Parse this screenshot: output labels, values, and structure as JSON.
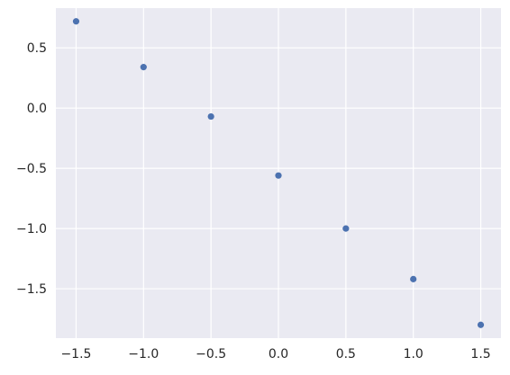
{
  "chart_data": {
    "type": "scatter",
    "title": "",
    "xlabel": "",
    "ylabel": "",
    "grid": true,
    "colors": {
      "background": "#eaeaf2",
      "grid": "#ffffff",
      "point": "#4c72b0",
      "tick_text": "#262626"
    },
    "xlim": [
      -1.65,
      1.65
    ],
    "ylim": [
      -1.91,
      0.83
    ],
    "x_ticks": [
      -1.5,
      -1.0,
      -0.5,
      0.0,
      0.5,
      1.0,
      1.5
    ],
    "x_tick_labels": [
      "−1.5",
      "−1.0",
      "−0.5",
      "0.0",
      "0.5",
      "1.0",
      "1.5"
    ],
    "y_ticks": [
      0.5,
      0.0,
      -0.5,
      -1.0,
      -1.5
    ],
    "y_tick_labels": [
      "0.5",
      "0.0",
      "−0.5",
      "−1.0",
      "−1.5"
    ],
    "series": [
      {
        "x": [
          -1.5,
          -1.0,
          -0.5,
          0.0,
          0.5,
          1.0,
          1.5
        ],
        "y": [
          0.72,
          0.34,
          -0.07,
          -0.56,
          -1.0,
          -1.42,
          -1.8
        ]
      }
    ]
  }
}
